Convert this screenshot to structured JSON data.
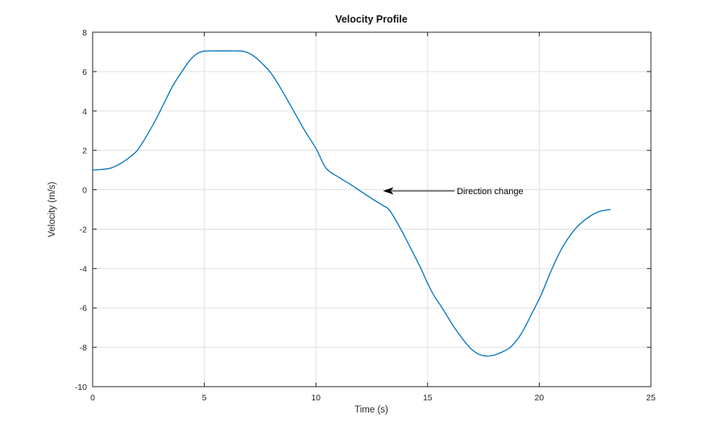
{
  "figure": {
    "background": "#ffffff"
  },
  "chart_data": {
    "type": "line",
    "title": "Velocity Profile",
    "xlabel": "Time (s)",
    "ylabel": "Velocity (m/s)",
    "xlim": [
      0,
      25
    ],
    "ylim": [
      -10,
      8
    ],
    "xticks": [
      0,
      5,
      10,
      15,
      20,
      25
    ],
    "yticks": [
      -10,
      -8,
      -6,
      -4,
      -2,
      0,
      2,
      4,
      6,
      8
    ],
    "grid": true,
    "axis_color": "#262626",
    "grid_color": "#e0e0e0",
    "series": [
      {
        "name": "velocity",
        "color": "#0072BD",
        "points": [
          [
            0,
            1.0
          ],
          [
            0.4,
            1.03
          ],
          [
            0.8,
            1.1
          ],
          [
            1.2,
            1.3
          ],
          [
            1.6,
            1.6
          ],
          [
            2.0,
            2.0
          ],
          [
            2.4,
            2.7
          ],
          [
            2.8,
            3.5
          ],
          [
            3.2,
            4.4
          ],
          [
            3.6,
            5.3
          ],
          [
            4.0,
            6.0
          ],
          [
            4.3,
            6.5
          ],
          [
            4.6,
            6.85
          ],
          [
            4.9,
            7.02
          ],
          [
            5.2,
            7.05
          ],
          [
            5.6,
            7.05
          ],
          [
            6.0,
            7.05
          ],
          [
            6.4,
            7.05
          ],
          [
            6.8,
            7.02
          ],
          [
            7.2,
            6.8
          ],
          [
            7.6,
            6.4
          ],
          [
            8.0,
            5.9
          ],
          [
            8.5,
            5.0
          ],
          [
            9.0,
            4.0
          ],
          [
            9.5,
            3.0
          ],
          [
            10.0,
            2.1
          ],
          [
            10.45,
            1.1
          ],
          [
            11.0,
            0.65
          ],
          [
            11.5,
            0.3
          ],
          [
            12.0,
            -0.07
          ],
          [
            12.5,
            -0.45
          ],
          [
            13.0,
            -0.8
          ],
          [
            13.3,
            -1.05
          ],
          [
            13.8,
            -2.0
          ],
          [
            14.3,
            -3.1
          ],
          [
            14.7,
            -4.0
          ],
          [
            15.0,
            -4.75
          ],
          [
            15.3,
            -5.4
          ],
          [
            15.65,
            -6.0
          ],
          [
            16.2,
            -7.0
          ],
          [
            16.8,
            -7.9
          ],
          [
            17.2,
            -8.3
          ],
          [
            17.65,
            -8.45
          ],
          [
            18.1,
            -8.35
          ],
          [
            18.7,
            -8.0
          ],
          [
            19.2,
            -7.3
          ],
          [
            19.75,
            -6.1
          ],
          [
            20.1,
            -5.3
          ],
          [
            20.5,
            -4.2
          ],
          [
            21.0,
            -3.0
          ],
          [
            21.6,
            -2.0
          ],
          [
            22.2,
            -1.4
          ],
          [
            22.7,
            -1.1
          ],
          [
            23.2,
            -1.0
          ]
        ]
      }
    ],
    "annotation": {
      "text": "Direction change",
      "color": "#000000",
      "arrow_from": [
        16.2,
        -0.06
      ],
      "arrow_to": [
        13.0,
        -0.06
      ]
    }
  }
}
